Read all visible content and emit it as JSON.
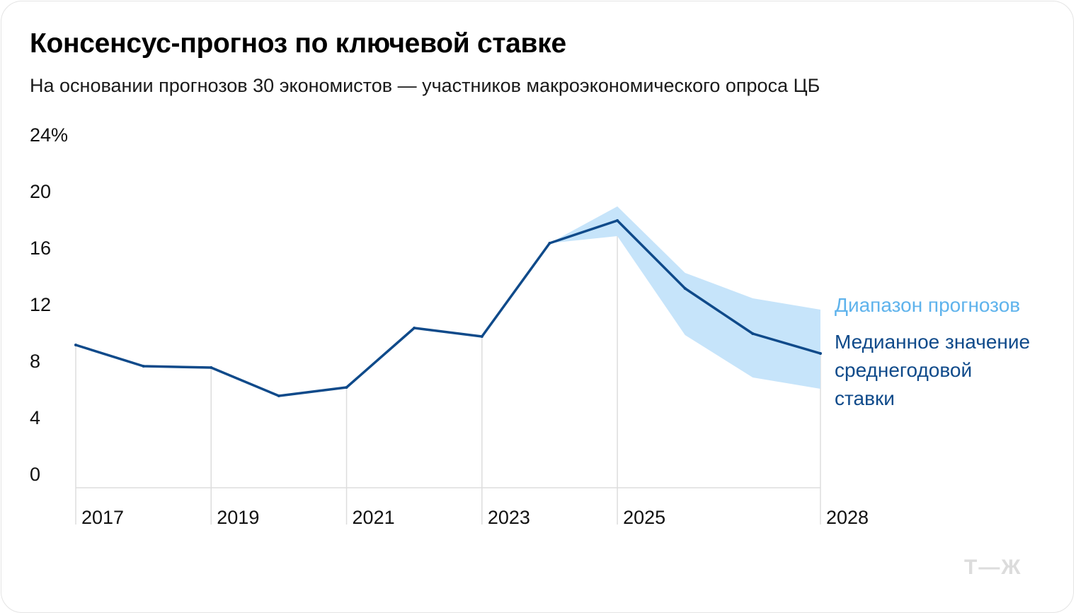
{
  "header": {
    "title": "Консенсус-прогноз по ключевой ставке",
    "subtitle": "На основании прогнозов 30 экономистов — участников макроэкономического опроса ЦБ"
  },
  "legend": {
    "range_label": "Диапазон прогнозов",
    "median_lines": [
      "Медианное значение",
      "среднегодовой",
      "ставки"
    ]
  },
  "logo_text": "Т—Ж",
  "colors": {
    "median_line": "#0f4a8a",
    "range_fill": "#c6e4fa",
    "range_text": "#5fb3ec",
    "grid": "#dddddd"
  },
  "chart_data": {
    "type": "line",
    "title": "Консенсус-прогноз по ключевой ставке",
    "subtitle": "На основании прогнозов 30 экономистов — участников макроэкономического опроса ЦБ",
    "xlabel": "",
    "ylabel": "",
    "x": [
      2017,
      2018,
      2019,
      2020,
      2021,
      2022,
      2023,
      2024,
      2025,
      2026,
      2027,
      2028
    ],
    "series": [
      {
        "name": "Медианное значение среднегодовой ставки",
        "values": [
          10.1,
          8.6,
          8.5,
          6.5,
          7.1,
          11.3,
          10.7,
          17.3,
          18.9,
          14.1,
          10.9,
          9.5
        ]
      }
    ],
    "range": {
      "name": "Диапазон прогнозов",
      "x": [
        2024,
        2025,
        2026,
        2027,
        2028
      ],
      "upper": [
        17.3,
        19.9,
        15.2,
        13.4,
        12.6
      ],
      "lower": [
        17.3,
        17.8,
        10.8,
        7.8,
        7.0
      ]
    },
    "ylim": [
      0,
      24
    ],
    "yticks": [
      0,
      4,
      8,
      12,
      16,
      20,
      24
    ],
    "ytick_labels": [
      "0",
      "4",
      "8",
      "12",
      "16",
      "20",
      "24%"
    ],
    "xticks": [
      2017,
      2019,
      2021,
      2023,
      2025,
      2028
    ],
    "xtick_labels": [
      "2017",
      "2019",
      "2021",
      "2023",
      "2025",
      "2028"
    ],
    "grid": "vertical lines at labeled years"
  }
}
